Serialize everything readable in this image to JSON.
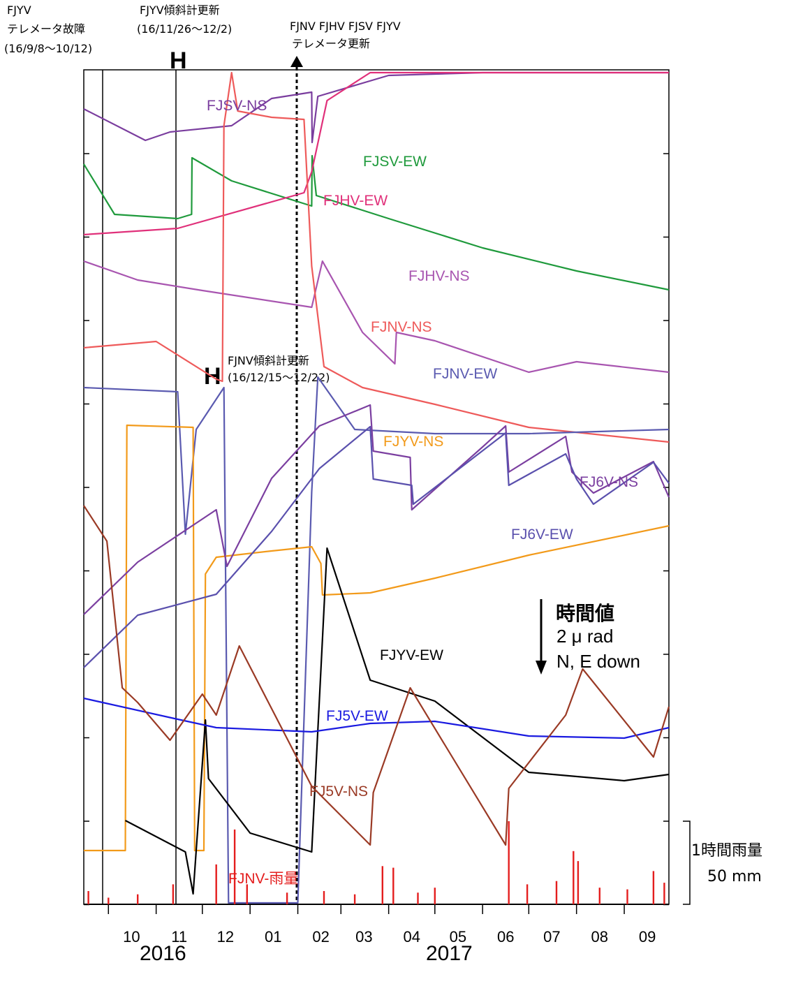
{
  "annotations": {
    "fjyv_failure": [
      "FJYV",
      "テレメータ故障",
      "(16/9/8〜10/12)"
    ],
    "fjyv_update": [
      "FJYV傾斜計更新",
      "(16/11/26〜12/2)"
    ],
    "telemeter_update": [
      "FJNV FJHV FJSV FJYV",
      "テレメータ更新"
    ],
    "fjnv_update": [
      "FJNV傾斜計更新",
      "(16/12/15〜12/22)"
    ],
    "h_mark": "H"
  },
  "scale": {
    "title": "時間値",
    "value": "2 μ rad",
    "direction": "N, E down",
    "rain_title": "1時間雨量",
    "rain_value": "50 mm"
  },
  "chart_data": {
    "type": "line",
    "x_unit": "month",
    "x_ticks": [
      "10",
      "11",
      "12",
      "01",
      "02",
      "03",
      "04",
      "05",
      "06",
      "07",
      "08",
      "09"
    ],
    "years": [
      "2016",
      "2017"
    ],
    "x_range": [
      "2016-09-15",
      "2017-09-30"
    ],
    "y_scale": {
      "per_division": "2 μrad",
      "direction": "N, E down"
    },
    "events": [
      {
        "name": "FJYV テレメータ故障",
        "start": "2016-09-08",
        "end": "2016-10-12"
      },
      {
        "name": "FJYV傾斜計更新",
        "start": "2016-11-26",
        "end": "2016-12-02"
      },
      {
        "name": "FJNV傾斜計更新",
        "start": "2016-12-15",
        "end": "2016-12-22"
      },
      {
        "name": "FJNV FJHV FJSV FJYV テレメータ更新",
        "date": "2017-02-10"
      }
    ],
    "series": [
      {
        "name": "FJSV-NS",
        "color": "#7a3d9e",
        "points": [
          [
            "2016-09-15",
            0.2
          ],
          [
            "2016-10-25",
            -1.3
          ],
          [
            "2016-11-10",
            -0.9
          ],
          [
            "2016-12-20",
            -0.6
          ],
          [
            "2017-01-15",
            0.7
          ],
          [
            "2017-02-10",
            1.0
          ],
          [
            "2017-02-10",
            -1.4
          ],
          [
            "2017-02-14",
            0.8
          ],
          [
            "2017-04-01",
            1.8
          ],
          [
            "2017-06-01",
            3.3
          ],
          [
            "2017-08-01",
            4.5
          ],
          [
            "2017-09-30",
            5.2
          ]
        ]
      },
      {
        "name": "FJSV-EW",
        "color": "#1f9a3c",
        "points": [
          [
            "2016-09-15",
            0.1
          ],
          [
            "2016-10-05",
            -2.3
          ],
          [
            "2016-11-15",
            -2.5
          ],
          [
            "2016-11-24",
            -2.3
          ],
          [
            "2016-11-24",
            0.4
          ],
          [
            "2016-12-20",
            -0.7
          ],
          [
            "2017-02-10",
            -1.9
          ],
          [
            "2017-02-10",
            0.5
          ],
          [
            "2017-02-13",
            -1.4
          ],
          [
            "2017-04-01",
            -2.5
          ],
          [
            "2017-06-01",
            -3.9
          ],
          [
            "2017-08-01",
            -5.0
          ],
          [
            "2017-09-30",
            -5.9
          ]
        ]
      },
      {
        "name": "FJHV-EW",
        "color": "#e0307a",
        "points": [
          [
            "2016-09-15",
            -0.8
          ],
          [
            "2016-11-15",
            -0.5
          ],
          [
            "2017-02-05",
            1.2
          ],
          [
            "2017-02-10",
            2.2
          ],
          [
            "2017-02-20",
            5.6
          ],
          [
            "2017-03-20",
            7.5
          ],
          [
            "2017-05-01",
            8.2
          ],
          [
            "2017-07-01",
            8.4
          ],
          [
            "2017-09-30",
            8.1
          ]
        ]
      },
      {
        "name": "FJHV-NS",
        "color": "#a855b0",
        "points": [
          [
            "2016-09-15",
            1.2
          ],
          [
            "2016-10-20",
            0.3
          ],
          [
            "2016-12-01",
            -0.2
          ],
          [
            "2017-02-10",
            -1.0
          ],
          [
            "2017-02-17",
            1.2
          ],
          [
            "2017-03-15",
            -2.2
          ],
          [
            "2017-04-05",
            -3.7
          ],
          [
            "2017-04-06",
            -2.2
          ],
          [
            "2017-05-01",
            -2.6
          ],
          [
            "2017-07-01",
            -4.1
          ],
          [
            "2017-08-01",
            -3.6
          ],
          [
            "2017-09-30",
            -4.1
          ]
        ]
      },
      {
        "name": "FJNV-NS",
        "color": "#ee5a5a",
        "points": [
          [
            "2016-09-15",
            -0.1
          ],
          [
            "2016-11-01",
            0.2
          ],
          [
            "2016-12-10",
            -1.6
          ],
          [
            "2016-12-14",
            -1.7
          ],
          [
            "2016-12-15",
            10.5
          ],
          [
            "2016-12-20",
            18.0
          ],
          [
            "2016-12-24",
            11.2
          ],
          [
            "2017-01-15",
            10.9
          ],
          [
            "2017-02-05",
            10.8
          ],
          [
            "2017-02-10",
            3.8
          ],
          [
            "2017-02-18",
            -1.0
          ],
          [
            "2017-03-15",
            -2.0
          ],
          [
            "2017-05-01",
            -2.8
          ],
          [
            "2017-07-01",
            -3.9
          ],
          [
            "2017-09-30",
            -4.6
          ]
        ]
      },
      {
        "name": "FJNV-EW",
        "color": "#5a5ab0",
        "points": [
          [
            "2016-09-15",
            0.0
          ],
          [
            "2016-11-15",
            -0.2
          ],
          [
            "2016-11-20",
            -7.0
          ],
          [
            "2016-11-27",
            -2.0
          ],
          [
            "2016-12-15",
            0.0
          ],
          [
            "2016-12-18",
            -40.0
          ],
          [
            "2016-12-21",
            -26.0
          ],
          [
            "2017-01-01",
            -28.0
          ],
          [
            "2017-02-01",
            -28.5
          ],
          [
            "2017-02-10",
            -5.0
          ],
          [
            "2017-02-14",
            0.5
          ],
          [
            "2017-03-10",
            -2.0
          ],
          [
            "2017-05-01",
            -2.2
          ],
          [
            "2017-07-01",
            -2.2
          ],
          [
            "2017-09-30",
            -2.0
          ]
        ]
      },
      {
        "name": "FJYV-NS",
        "color": "#f29a1a",
        "points": [
          [
            "2016-09-15",
            -14.0
          ],
          [
            "2016-10-12",
            -14.0
          ],
          [
            "2016-10-13",
            6.3
          ],
          [
            "2016-11-25",
            6.2
          ],
          [
            "2016-11-26",
            -14.0
          ],
          [
            "2016-12-02",
            -14.0
          ],
          [
            "2016-12-03",
            -0.8
          ],
          [
            "2016-12-10",
            0.0
          ],
          [
            "2017-01-15",
            0.3
          ],
          [
            "2017-02-10",
            0.5
          ],
          [
            "2017-02-16",
            -0.3
          ],
          [
            "2017-02-17",
            -1.8
          ],
          [
            "2017-03-20",
            -1.7
          ],
          [
            "2017-05-01",
            -1.0
          ],
          [
            "2017-07-01",
            0.1
          ],
          [
            "2017-09-30",
            1.5
          ]
        ]
      },
      {
        "name": "FJ6V-NS",
        "color": "#7b3fa0",
        "points": [
          [
            "2016-09-15",
            0.0
          ],
          [
            "2016-10-20",
            2.5
          ],
          [
            "2016-12-10",
            5.0
          ],
          [
            "2016-12-17",
            2.3
          ],
          [
            "2017-01-15",
            6.5
          ],
          [
            "2017-02-15",
            9.0
          ],
          [
            "2017-03-20",
            10.0
          ],
          [
            "2017-03-22",
            7.8
          ],
          [
            "2017-04-15",
            7.5
          ],
          [
            "2017-04-16",
            5.0
          ],
          [
            "2017-06-01",
            8.0
          ],
          [
            "2017-06-16",
            9.0
          ],
          [
            "2017-06-18",
            6.8
          ],
          [
            "2017-07-25",
            8.5
          ],
          [
            "2017-07-29",
            6.8
          ],
          [
            "2017-08-12",
            5.8
          ],
          [
            "2017-09-20",
            7.3
          ],
          [
            "2017-09-30",
            5.6
          ]
        ]
      },
      {
        "name": "FJ6V-EW",
        "color": "#5a50ad",
        "points": [
          [
            "2016-09-15",
            0.0
          ],
          [
            "2016-10-20",
            2.5
          ],
          [
            "2016-12-10",
            3.5
          ],
          [
            "2017-01-15",
            6.5
          ],
          [
            "2017-02-15",
            9.5
          ],
          [
            "2017-03-20",
            11.5
          ],
          [
            "2017-03-22",
            9.0
          ],
          [
            "2017-04-16",
            8.7
          ],
          [
            "2017-04-17",
            7.8
          ],
          [
            "2017-06-16",
            11.2
          ],
          [
            "2017-06-18",
            8.7
          ],
          [
            "2017-07-25",
            10.2
          ],
          [
            "2017-08-01",
            9.0
          ],
          [
            "2017-08-12",
            7.8
          ],
          [
            "2017-09-20",
            9.8
          ],
          [
            "2017-09-30",
            8.8
          ]
        ]
      },
      {
        "name": "FJYV-EW",
        "color": "#000000",
        "points": [
          [
            "2016-10-12",
            0.0
          ],
          [
            "2016-11-20",
            -1.5
          ],
          [
            "2016-11-25",
            -3.5
          ],
          [
            "2016-12-03",
            4.8
          ],
          [
            "2016-12-05",
            2.0
          ],
          [
            "2017-01-01",
            -0.6
          ],
          [
            "2017-02-10",
            -1.5
          ],
          [
            "2017-02-20",
            13.0
          ],
          [
            "2017-03-20",
            6.7
          ],
          [
            "2017-05-01",
            5.7
          ],
          [
            "2017-07-01",
            2.3
          ],
          [
            "2017-09-01",
            1.9
          ],
          [
            "2017-09-30",
            2.2
          ]
        ]
      },
      {
        "name": "FJ5V-EW",
        "color": "#1a1ae0",
        "points": [
          [
            "2016-09-15",
            0.5
          ],
          [
            "2016-11-15",
            -0.5
          ],
          [
            "2016-12-10",
            -0.9
          ],
          [
            "2017-02-10",
            -1.1
          ],
          [
            "2017-03-20",
            -0.7
          ],
          [
            "2017-05-01",
            -0.6
          ],
          [
            "2017-07-01",
            -1.3
          ],
          [
            "2017-09-01",
            -1.4
          ],
          [
            "2017-09-30",
            -0.9
          ]
        ]
      },
      {
        "name": "FJ5V-NS",
        "color": "#9a3a25",
        "points": [
          [
            "2016-09-15",
            6.2
          ],
          [
            "2016-09-30",
            4.5
          ],
          [
            "2016-10-10",
            -2.5
          ],
          [
            "2016-10-20",
            -3.2
          ],
          [
            "2016-11-10",
            -5.0
          ],
          [
            "2016-12-01",
            -2.8
          ],
          [
            "2016-12-10",
            -3.8
          ],
          [
            "2016-12-25",
            -0.5
          ],
          [
            "2017-02-10",
            -7.2
          ],
          [
            "2017-03-20",
            -10.0
          ],
          [
            "2017-03-22",
            -7.5
          ],
          [
            "2017-04-15",
            -2.5
          ],
          [
            "2017-06-16",
            -10.0
          ],
          [
            "2017-06-18",
            -7.3
          ],
          [
            "2017-07-25",
            -3.8
          ],
          [
            "2017-08-05",
            -1.6
          ],
          [
            "2017-09-20",
            -5.8
          ],
          [
            "2017-09-30",
            -3.4
          ]
        ]
      },
      {
        "name": "FJNV-雨量",
        "color": "#e41e1e",
        "type": "bar",
        "unit": "mm/h",
        "points": [
          [
            "2016-09-18",
            8
          ],
          [
            "2016-10-01",
            4
          ],
          [
            "2016-10-20",
            6
          ],
          [
            "2016-11-12",
            12
          ],
          [
            "2016-12-10",
            24
          ],
          [
            "2016-12-22",
            45
          ],
          [
            "2016-12-30",
            12
          ],
          [
            "2017-01-25",
            7
          ],
          [
            "2017-02-18",
            8
          ],
          [
            "2017-03-10",
            6
          ],
          [
            "2017-03-28",
            23
          ],
          [
            "2017-04-04",
            22
          ],
          [
            "2017-04-20",
            7
          ],
          [
            "2017-05-01",
            10
          ],
          [
            "2017-06-18",
            50
          ],
          [
            "2017-06-30",
            12
          ],
          [
            "2017-07-19",
            14
          ],
          [
            "2017-07-30",
            32
          ],
          [
            "2017-08-02",
            26
          ],
          [
            "2017-08-16",
            10
          ],
          [
            "2017-09-03",
            9
          ],
          [
            "2017-09-20",
            20
          ],
          [
            "2017-09-27",
            13
          ]
        ]
      }
    ]
  }
}
